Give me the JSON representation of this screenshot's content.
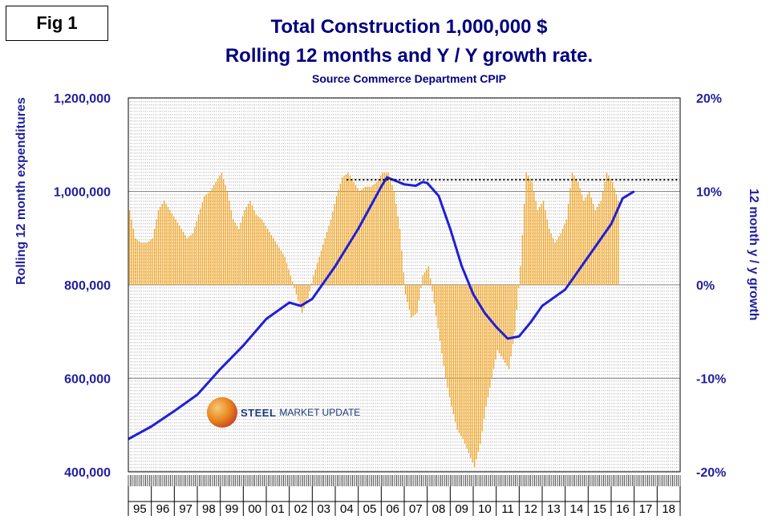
{
  "figure_label": "Fig 1",
  "chart_data": {
    "type": "bar+line",
    "title": "Total Construction 1,000,000 $",
    "title_line2": "Rolling 12 months and Y / Y growth rate.",
    "subtitle": "Source Commerce Department CPIP",
    "ylabel_left": "Rolling 12 month expenditures",
    "ylabel_right": "12 month y / y growth",
    "ylim_left": [
      400000,
      1200000
    ],
    "ylim_right": [
      -20,
      20
    ],
    "yticks_left": [
      "1,200,000",
      "1,000,000",
      "800,000",
      "600,000",
      "400,000"
    ],
    "yticks_right": [
      "20%",
      "10%",
      "0%",
      "-10%",
      "-20%"
    ],
    "categories": [
      "95",
      "96",
      "97",
      "98",
      "99",
      "00",
      "01",
      "02",
      "03",
      "04",
      "05",
      "06",
      "07",
      "08",
      "09",
      "10",
      "11",
      "12",
      "13",
      "14",
      "15",
      "16",
      "17",
      "18"
    ],
    "x_range": [
      1995,
      2019
    ],
    "series": [
      {
        "name": "Y/Y growth rate",
        "type": "bar",
        "axis": "right",
        "color": "#f5a623",
        "points": [
          [
            1995.0,
            8
          ],
          [
            1995.25,
            5
          ],
          [
            1995.5,
            4.5
          ],
          [
            1995.75,
            4.5
          ],
          [
            1996.0,
            5
          ],
          [
            1996.25,
            8
          ],
          [
            1996.5,
            9
          ],
          [
            1996.75,
            8
          ],
          [
            1997.0,
            7
          ],
          [
            1997.25,
            6
          ],
          [
            1997.5,
            5
          ],
          [
            1997.75,
            5.5
          ],
          [
            1998.0,
            7.5
          ],
          [
            1998.25,
            9.5
          ],
          [
            1998.5,
            10
          ],
          [
            1998.75,
            11
          ],
          [
            1999.0,
            12
          ],
          [
            1999.25,
            10
          ],
          [
            1999.5,
            7
          ],
          [
            1999.75,
            6
          ],
          [
            2000.0,
            8
          ],
          [
            2000.25,
            9
          ],
          [
            2000.5,
            7.5
          ],
          [
            2000.75,
            7
          ],
          [
            2001.0,
            6
          ],
          [
            2001.25,
            5
          ],
          [
            2001.5,
            4
          ],
          [
            2001.75,
            3
          ],
          [
            2002.0,
            1
          ],
          [
            2002.25,
            -1
          ],
          [
            2002.5,
            -3
          ],
          [
            2002.75,
            -1.5
          ],
          [
            2003.0,
            1
          ],
          [
            2003.25,
            3
          ],
          [
            2003.5,
            5
          ],
          [
            2003.75,
            7
          ],
          [
            2004.0,
            9.5
          ],
          [
            2004.25,
            11.5
          ],
          [
            2004.5,
            12
          ],
          [
            2004.75,
            11
          ],
          [
            2005.0,
            10
          ],
          [
            2005.25,
            10.5
          ],
          [
            2005.5,
            10.5
          ],
          [
            2005.75,
            11
          ],
          [
            2006.0,
            12
          ],
          [
            2006.25,
            12
          ],
          [
            2006.5,
            10
          ],
          [
            2006.75,
            6
          ],
          [
            2007.0,
            -1
          ],
          [
            2007.25,
            -3.5
          ],
          [
            2007.5,
            -3
          ],
          [
            2007.75,
            1
          ],
          [
            2008.0,
            2
          ],
          [
            2008.25,
            -2
          ],
          [
            2008.5,
            -6
          ],
          [
            2008.75,
            -10
          ],
          [
            2009.0,
            -13
          ],
          [
            2009.25,
            -15.5
          ],
          [
            2009.5,
            -16.5
          ],
          [
            2009.75,
            -18
          ],
          [
            2010.0,
            -19.5
          ],
          [
            2010.25,
            -17
          ],
          [
            2010.5,
            -13
          ],
          [
            2010.75,
            -10
          ],
          [
            2011.0,
            -7
          ],
          [
            2011.25,
            -8
          ],
          [
            2011.5,
            -9
          ],
          [
            2011.75,
            -5
          ],
          [
            2012.0,
            2
          ],
          [
            2012.25,
            12
          ],
          [
            2012.5,
            11
          ],
          [
            2012.75,
            8
          ],
          [
            2013.0,
            9
          ],
          [
            2013.25,
            6
          ],
          [
            2013.5,
            4.5
          ],
          [
            2013.75,
            5.5
          ],
          [
            2014.0,
            7
          ],
          [
            2014.25,
            12
          ],
          [
            2014.5,
            11
          ],
          [
            2014.75,
            9
          ],
          [
            2015.0,
            10
          ],
          [
            2015.25,
            8
          ],
          [
            2015.5,
            9
          ],
          [
            2015.75,
            12
          ],
          [
            2016.0,
            11
          ],
          [
            2016.25,
            9
          ]
        ]
      },
      {
        "name": "Rolling 12 month expenditures",
        "type": "line",
        "axis": "left",
        "color": "#1f1fd6",
        "points": [
          [
            1995.0,
            470000
          ],
          [
            1996.0,
            497000
          ],
          [
            1997.0,
            530000
          ],
          [
            1998.0,
            565000
          ],
          [
            1999.0,
            620000
          ],
          [
            2000.0,
            670000
          ],
          [
            2001.0,
            727000
          ],
          [
            2002.0,
            762000
          ],
          [
            2002.5,
            755000
          ],
          [
            2003.0,
            770000
          ],
          [
            2004.0,
            840000
          ],
          [
            2005.0,
            920000
          ],
          [
            2006.0,
            1010000
          ],
          [
            2006.25,
            1030000
          ],
          [
            2006.5,
            1025000
          ],
          [
            2007.0,
            1015000
          ],
          [
            2007.5,
            1012000
          ],
          [
            2007.8,
            1020000
          ],
          [
            2008.0,
            1018000
          ],
          [
            2008.5,
            990000
          ],
          [
            2009.0,
            920000
          ],
          [
            2009.5,
            840000
          ],
          [
            2010.0,
            780000
          ],
          [
            2010.5,
            740000
          ],
          [
            2011.0,
            710000
          ],
          [
            2011.5,
            685000
          ],
          [
            2012.0,
            690000
          ],
          [
            2012.5,
            720000
          ],
          [
            2013.0,
            755000
          ],
          [
            2014.0,
            790000
          ],
          [
            2015.0,
            860000
          ],
          [
            2016.0,
            930000
          ],
          [
            2016.5,
            985000
          ],
          [
            2017.0,
            1000000
          ]
        ]
      },
      {
        "name": "Previous peak reference",
        "type": "dotted-line",
        "axis": "left",
        "color": "#000000",
        "y": 1025000,
        "x_start": 2004.5,
        "x_end": 2019
      }
    ]
  },
  "logo": {
    "word_1": "STEEL",
    "word_2": "MARKET UPDATE"
  }
}
